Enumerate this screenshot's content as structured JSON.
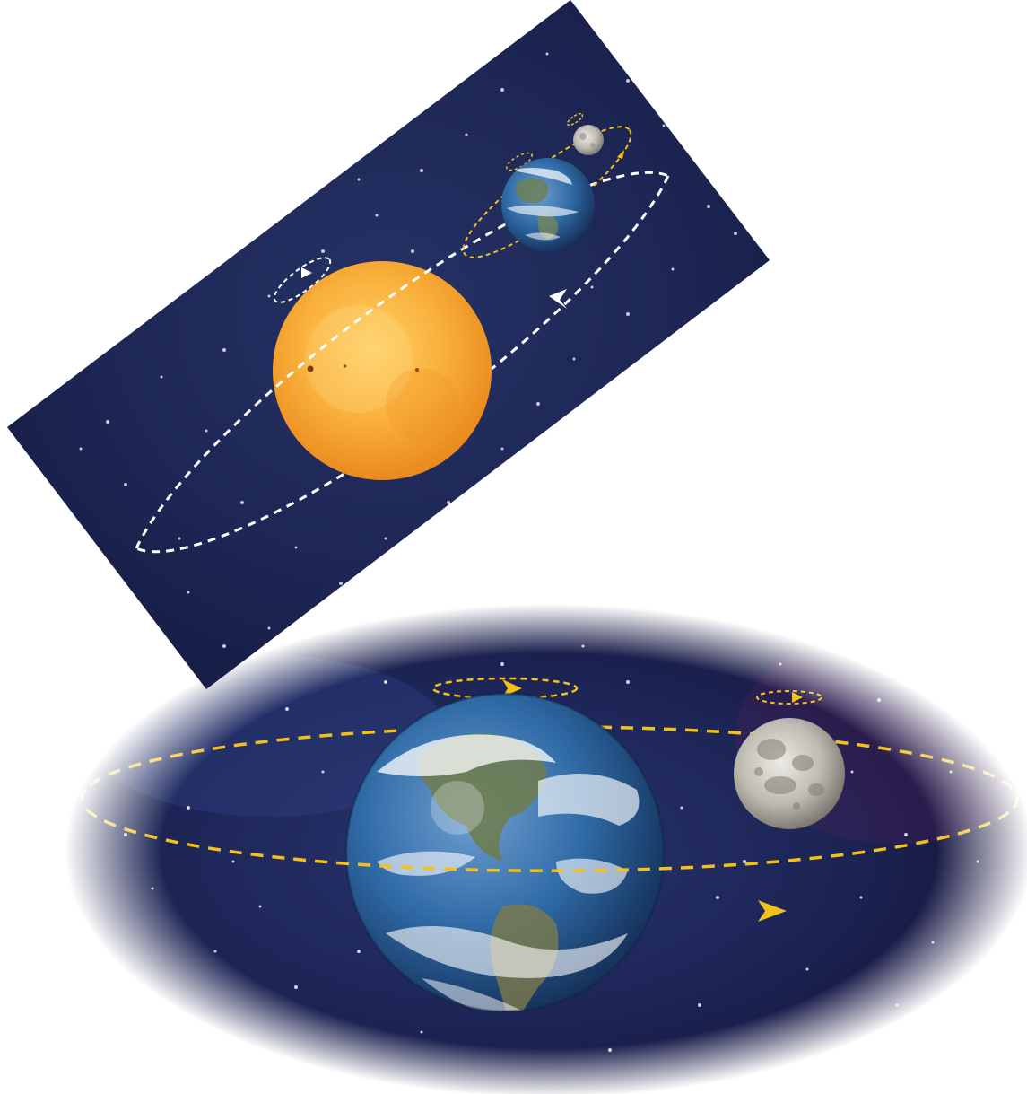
{
  "figure": {
    "panels": [
      {
        "id": "sun-earth-moon-system",
        "bodies": [
          "sun",
          "earth",
          "moon"
        ],
        "orbit_color": "#ffffff",
        "moon_orbit_color": "#f2c21b"
      },
      {
        "id": "earth-moon-system",
        "bodies": [
          "earth",
          "moon"
        ],
        "orbit_color": "#f2c21b"
      }
    ],
    "colors": {
      "space": "#1b2550",
      "sun": "#f6a531",
      "earth_ocean": "#2f6aa6",
      "moon": "#bdbab1",
      "orbit_white": "#ffffff",
      "orbit_yellow": "#f2c21b"
    },
    "icons": [
      "sun-icon",
      "earth-icon",
      "moon-icon",
      "orbit-arrow-icon"
    ]
  }
}
